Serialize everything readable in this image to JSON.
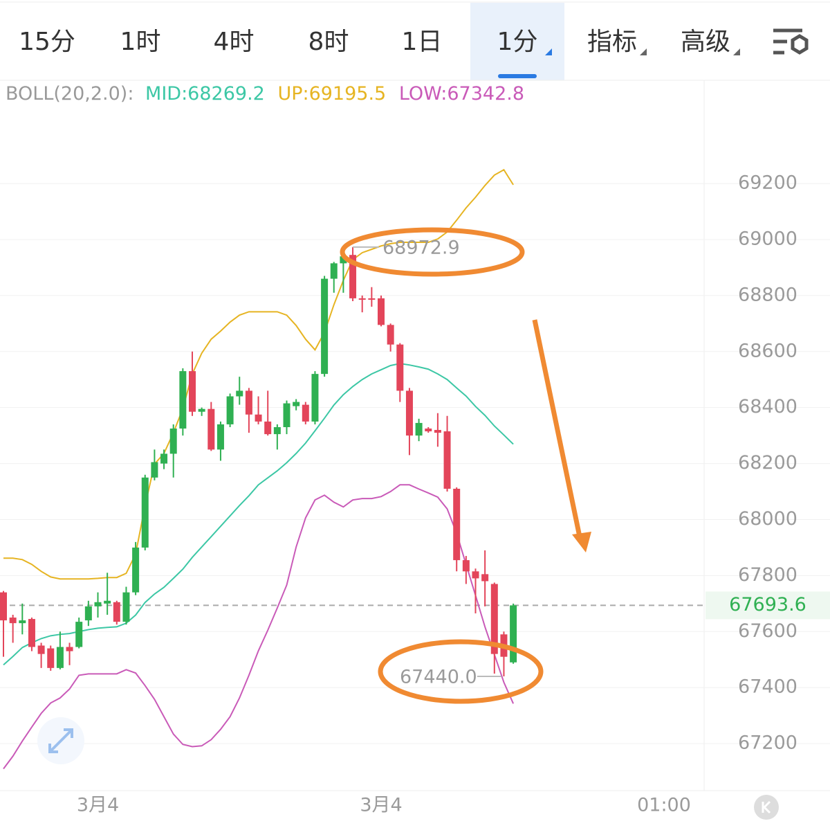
{
  "tabs": [
    "15分",
    "1时",
    "4时",
    "8时",
    "1日",
    "1分",
    "指标",
    "高级"
  ],
  "selected_tab": 5,
  "chart_data": {
    "type": "candlestick",
    "indicator": "BOLL(20,2.0):",
    "categories": [
      null,
      null,
      null,
      null,
      null,
      null,
      null,
      null,
      null,
      null,
      "3月4",
      null,
      null,
      null,
      null,
      null,
      null,
      null,
      null,
      null,
      null,
      null,
      null,
      null,
      null,
      null,
      null,
      null,
      null,
      null,
      null,
      null,
      null,
      null,
      null,
      null,
      null,
      null,
      null,
      null,
      "3月4",
      null,
      null,
      null,
      null,
      null,
      null,
      null,
      null,
      null,
      null,
      null,
      null,
      null,
      null
    ],
    "x_end_label": "01:00",
    "open": [
      67740,
      67650,
      67630,
      67645,
      67550,
      67540,
      67470,
      67545,
      67545,
      67640,
      67690,
      67700,
      67705,
      67635,
      67740,
      67900,
      68150,
      68200,
      68235,
      68325,
      68530,
      68385,
      68395,
      68250,
      68340,
      68440,
      68460,
      68375,
      68350,
      68305,
      68330,
      68405,
      68410,
      68350,
      68520,
      68860,
      68915,
      68945,
      68790,
      68790,
      68790,
      68695,
      68625,
      68460,
      68300,
      68325,
      68320,
      68315,
      68110,
      67855,
      67815,
      67805,
      67770,
      67590,
      67490
    ],
    "high": [
      67745,
      67660,
      67700,
      67650,
      67560,
      67550,
      67600,
      67560,
      67650,
      67710,
      67740,
      67810,
      67710,
      67760,
      67920,
      68160,
      68250,
      68250,
      68340,
      68540,
      68600,
      68400,
      68420,
      68350,
      68450,
      68510,
      68470,
      68440,
      68460,
      68340,
      68425,
      68430,
      68420,
      68530,
      68870,
      68920,
      68973,
      68973,
      68800,
      68830,
      68800,
      68700,
      68630,
      68470,
      68360,
      68330,
      68380,
      68370,
      68115,
      67870,
      67825,
      67890,
      67775,
      67600,
      67700
    ],
    "low": [
      67510,
      67560,
      67590,
      67530,
      67470,
      67460,
      67465,
      67480,
      67540,
      67620,
      67650,
      67660,
      67625,
      67625,
      67730,
      67890,
      68140,
      68180,
      68150,
      68300,
      68370,
      68370,
      68245,
      68210,
      68330,
      68410,
      68310,
      68340,
      68300,
      68250,
      68305,
      68390,
      68340,
      68340,
      68510,
      68810,
      68810,
      68780,
      68740,
      68760,
      68690,
      68600,
      68420,
      68230,
      68280,
      68310,
      68260,
      68100,
      67815,
      67770,
      67665,
      67690,
      67450,
      67440,
      67485
    ],
    "close": [
      67640,
      67630,
      67640,
      67545,
      67520,
      67470,
      67545,
      67530,
      67635,
      67690,
      67705,
      67710,
      67635,
      67740,
      67900,
      68150,
      68205,
      68235,
      68325,
      68530,
      68385,
      68395,
      68250,
      68340,
      68440,
      68460,
      68375,
      68350,
      68305,
      68330,
      68415,
      68420,
      68350,
      68520,
      68860,
      68915,
      68940,
      68790,
      68785,
      68785,
      68695,
      68625,
      68460,
      68300,
      68345,
      68315,
      68310,
      68110,
      67855,
      67815,
      67790,
      67780,
      67520,
      67510,
      67693.6
    ],
    "up_color": "#2fb052",
    "down_color": "#e3455a",
    "series": [
      {
        "name": "MID:68269.2",
        "color": "#3cc7a5",
        "values": [
          67481,
          67511,
          67543,
          67560,
          67575,
          67585,
          67590,
          67593,
          67600,
          67607,
          67612,
          67615,
          67617,
          67630,
          67659,
          67704,
          67734,
          67758,
          67790,
          67823,
          67865,
          67902,
          67939,
          67976,
          68013,
          68050,
          68085,
          68124,
          68149,
          68174,
          68203,
          68236,
          68273,
          68317,
          68362,
          68409,
          68446,
          68475,
          68500,
          68520,
          68535,
          68550,
          68557,
          68552,
          68545,
          68537,
          68520,
          68500,
          68470,
          68441,
          68404,
          68372,
          68334,
          68302,
          68269.2
        ]
      },
      {
        "name": "UP:69195.5",
        "color": "#e6b422",
        "values": [
          67862,
          67862,
          67857,
          67840,
          67815,
          67795,
          67788,
          67788,
          67788,
          67788,
          67790,
          67793,
          67793,
          67808,
          67877,
          68050,
          68198,
          68236,
          68310,
          68396,
          68520,
          68594,
          68644,
          68673,
          68705,
          68730,
          68742,
          68742,
          68742,
          68742,
          68730,
          68693,
          68644,
          68606,
          68668,
          68767,
          68854,
          68928,
          68953,
          68965,
          68977,
          68985,
          68990,
          68990,
          68990,
          68990,
          69002,
          69027,
          69069,
          69113,
          69151,
          69193,
          69230,
          69249,
          69195.5
        ]
      },
      {
        "name": "LOW:67342.8",
        "color": "#c95ab8",
        "values": [
          67110,
          67155,
          67209,
          67259,
          67308,
          67345,
          67363,
          67395,
          67444,
          67449,
          67449,
          67449,
          67449,
          67464,
          67452,
          67407,
          67358,
          67296,
          67234,
          67197,
          67189,
          67192,
          67214,
          67251,
          67296,
          67363,
          67444,
          67531,
          67605,
          67684,
          67766,
          67902,
          68006,
          68070,
          68087,
          68062,
          68045,
          68070,
          68075,
          68075,
          68082,
          68100,
          68124,
          68124,
          68109,
          68095,
          68080,
          68038,
          67951,
          67840,
          67729,
          67617,
          67518,
          67419,
          67342.8
        ]
      }
    ],
    "last_price": 67693.6,
    "annotations": [
      {
        "value": 68972.9,
        "label": "68972.9"
      },
      {
        "value": 67440.0,
        "label": "67440.0"
      }
    ],
    "ylim": [
      67037,
      69571
    ],
    "yticks": [
      67200,
      67400,
      67600,
      67800,
      68000,
      68200,
      68400,
      68600,
      68800,
      69000,
      69200
    ],
    "grid": true
  }
}
